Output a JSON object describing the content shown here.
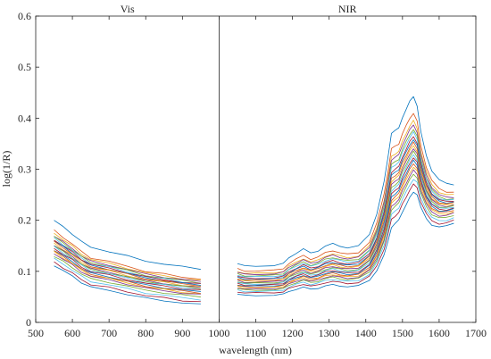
{
  "chart_data": {
    "type": "line",
    "title": "",
    "xlabel": "wavelength (nm)",
    "ylabel": "log(1/R)",
    "xlim": [
      500,
      1700
    ],
    "ylim": [
      0,
      0.6
    ],
    "x_ticks": [
      500,
      600,
      700,
      800,
      900,
      1000,
      1100,
      1200,
      1300,
      1400,
      1500,
      1600,
      1700
    ],
    "y_ticks": [
      0,
      0.1,
      0.2,
      0.3,
      0.4,
      0.5,
      0.6
    ],
    "panels": [
      {
        "title": "Vis",
        "x_range": [
          550,
          950
        ]
      },
      {
        "title": "NIR",
        "x_range": [
          1050,
          1640
        ]
      }
    ],
    "panel_divider_x": 1000,
    "colors": [
      "#0072BD",
      "#D95319",
      "#EDB120",
      "#7E2F8E",
      "#77AC30",
      "#4DBEEE",
      "#A2142F"
    ],
    "grid": false,
    "vis_x": [
      550,
      575,
      600,
      625,
      650,
      700,
      750,
      800,
      850,
      900,
      950
    ],
    "vis_shape": [
      1.0,
      0.93,
      0.86,
      0.78,
      0.72,
      0.68,
      0.63,
      0.58,
      0.55,
      0.52,
      0.5
    ],
    "nir_x": [
      1050,
      1070,
      1100,
      1150,
      1175,
      1190,
      1210,
      1230,
      1250,
      1270,
      1290,
      1310,
      1330,
      1350,
      1380,
      1410,
      1430,
      1450,
      1460,
      1470,
      1480,
      1490,
      1500,
      1510,
      1520,
      1530,
      1540,
      1550,
      1565,
      1580,
      1600,
      1620,
      1640
    ],
    "nir_shape": [
      1.0,
      0.96,
      0.96,
      0.97,
      1.0,
      1.1,
      1.18,
      1.25,
      1.18,
      1.22,
      1.3,
      1.34,
      1.3,
      1.27,
      1.3,
      1.5,
      1.85,
      2.4,
      2.8,
      3.25,
      3.3,
      3.35,
      3.55,
      3.7,
      3.85,
      3.95,
      3.8,
      3.35,
      2.95,
      2.7,
      2.55,
      2.5,
      2.5
    ],
    "series": [
      {
        "vis_start": 0.2,
        "vis_end": 0.105,
        "nir_start": 0.115,
        "nir_end": 0.27
      },
      {
        "vis_start": 0.18,
        "vis_end": 0.085,
        "nir_start": 0.105,
        "nir_end": 0.255
      },
      {
        "vis_start": 0.175,
        "vis_end": 0.082,
        "nir_start": 0.1,
        "nir_end": 0.25
      },
      {
        "vis_start": 0.17,
        "vis_end": 0.08,
        "nir_start": 0.098,
        "nir_end": 0.245
      },
      {
        "vis_start": 0.168,
        "vis_end": 0.078,
        "nir_start": 0.095,
        "nir_end": 0.242
      },
      {
        "vis_start": 0.165,
        "vis_end": 0.076,
        "nir_start": 0.093,
        "nir_end": 0.24
      },
      {
        "vis_start": 0.162,
        "vis_end": 0.075,
        "nir_start": 0.09,
        "nir_end": 0.238
      },
      {
        "vis_start": 0.16,
        "vis_end": 0.073,
        "nir_start": 0.088,
        "nir_end": 0.236
      },
      {
        "vis_start": 0.158,
        "vis_end": 0.072,
        "nir_start": 0.086,
        "nir_end": 0.234
      },
      {
        "vis_start": 0.155,
        "vis_end": 0.07,
        "nir_start": 0.084,
        "nir_end": 0.232
      },
      {
        "vis_start": 0.152,
        "vis_end": 0.068,
        "nir_start": 0.082,
        "nir_end": 0.23
      },
      {
        "vis_start": 0.15,
        "vis_end": 0.067,
        "nir_start": 0.08,
        "nir_end": 0.228
      },
      {
        "vis_start": 0.148,
        "vis_end": 0.065,
        "nir_start": 0.078,
        "nir_end": 0.226
      },
      {
        "vis_start": 0.145,
        "vis_end": 0.063,
        "nir_start": 0.076,
        "nir_end": 0.224
      },
      {
        "vis_start": 0.142,
        "vis_end": 0.06,
        "nir_start": 0.074,
        "nir_end": 0.222
      },
      {
        "vis_start": 0.14,
        "vis_end": 0.058,
        "nir_start": 0.072,
        "nir_end": 0.22
      },
      {
        "vis_start": 0.138,
        "vis_end": 0.056,
        "nir_start": 0.07,
        "nir_end": 0.217
      },
      {
        "vis_start": 0.135,
        "vis_end": 0.054,
        "nir_start": 0.068,
        "nir_end": 0.214
      },
      {
        "vis_start": 0.13,
        "vis_end": 0.05,
        "nir_start": 0.066,
        "nir_end": 0.21
      },
      {
        "vis_start": 0.125,
        "vis_end": 0.045,
        "nir_start": 0.063,
        "nir_end": 0.205
      },
      {
        "vis_start": 0.118,
        "vis_end": 0.04,
        "nir_start": 0.06,
        "nir_end": 0.2
      },
      {
        "vis_start": 0.112,
        "vis_end": 0.035,
        "nir_start": 0.055,
        "nir_end": 0.195
      }
    ]
  }
}
